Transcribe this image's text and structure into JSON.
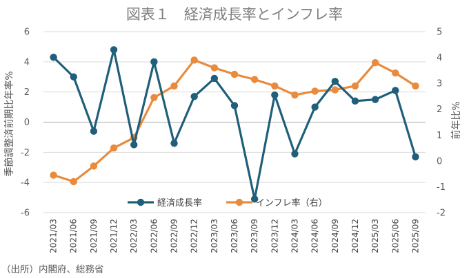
{
  "chart_data": {
    "type": "line",
    "title": "図表１　経済成長率とインフレ率",
    "ylabel_left": "季節調整済前期比年率%",
    "ylabel_right": "前年比%",
    "ylim_left": [
      -6,
      6
    ],
    "yticks_left": [
      6,
      4,
      2,
      0,
      -2,
      -4,
      -6
    ],
    "ylim_right": [
      -2,
      5
    ],
    "yticks_right": [
      5,
      4,
      3,
      2,
      1,
      0,
      -1,
      -2
    ],
    "categories": [
      "2021/03",
      "2021/06",
      "2021/09",
      "2021/12",
      "2022/03",
      "2022/06",
      "2022/09",
      "2022/12",
      "2023/03",
      "2023/06",
      "2023/09",
      "2023/12",
      "2024/03",
      "2024/06",
      "2024/09",
      "2024/12",
      "2025/03",
      "2025/06",
      "2025/09"
    ],
    "series": [
      {
        "name": "経済成長率",
        "axis": "left",
        "color": "#1f5f7a",
        "values": [
          4.3,
          3.0,
          -0.6,
          4.8,
          -1.5,
          4.0,
          -1.4,
          1.7,
          2.9,
          1.1,
          -5.1,
          1.8,
          -2.1,
          1.0,
          2.7,
          1.4,
          1.5,
          2.1,
          -2.3
        ]
      },
      {
        "name": "インフレ率（右）",
        "axis": "right",
        "color": "#e98a3c",
        "values": [
          -0.55,
          -0.8,
          -0.2,
          0.5,
          0.9,
          2.45,
          2.9,
          3.9,
          3.6,
          3.35,
          3.15,
          2.9,
          2.55,
          2.7,
          2.75,
          2.9,
          3.8,
          3.4,
          2.9
        ]
      }
    ],
    "grid": true,
    "legend": "bottom-center"
  },
  "source_note": "（出所）内閣府、総務省"
}
